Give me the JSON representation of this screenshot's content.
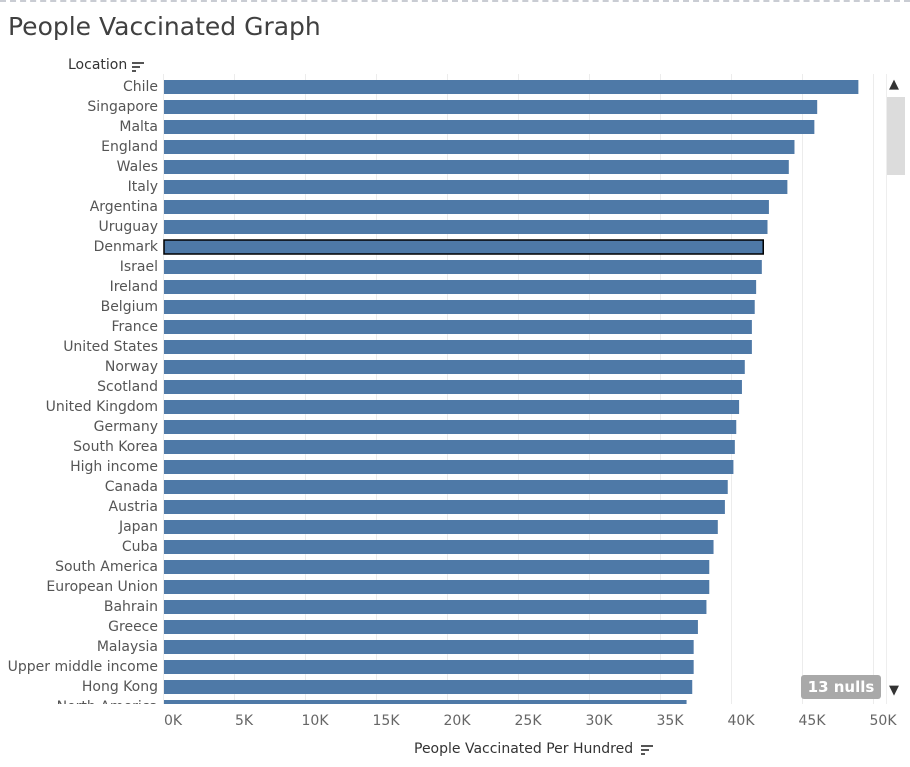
{
  "title": "People Vaccinated Graph",
  "row_header": "Location",
  "nulls_badge": "13 nulls",
  "colors": {
    "bar": "#4e79a7",
    "selected_outline": "#000000",
    "gridline": "#ececec"
  },
  "icons": [
    "sort-icon",
    "chevron-up-icon",
    "chevron-down-icon"
  ],
  "chart_data": {
    "type": "bar",
    "orientation": "horizontal",
    "title": "People Vaccinated Graph",
    "xlabel": "People Vaccinated Per Hundred",
    "ylabel": "Location",
    "xlim": [
      0,
      50000
    ],
    "x_ticks": [
      "0K",
      "5K",
      "10K",
      "15K",
      "20K",
      "25K",
      "30K",
      "35K",
      "40K",
      "45K",
      "50K"
    ],
    "grid": true,
    "selected_category": "Denmark",
    "categories": [
      "Chile",
      "Singapore",
      "Malta",
      "England",
      "Wales",
      "Italy",
      "Argentina",
      "Uruguay",
      "Denmark",
      "Israel",
      "Ireland",
      "Belgium",
      "France",
      "United States",
      "Norway",
      "Scotland",
      "United Kingdom",
      "Germany",
      "South Korea",
      "High income",
      "Canada",
      "Austria",
      "Japan",
      "Cuba",
      "South America",
      "European Union",
      "Bahrain",
      "Greece",
      "Malaysia",
      "Upper middle income",
      "Hong Kong",
      "North America"
    ],
    "values": [
      48900,
      46000,
      45800,
      44400,
      44000,
      43900,
      42600,
      42500,
      42200,
      42100,
      41700,
      41600,
      41400,
      41400,
      40900,
      40700,
      40500,
      40300,
      40200,
      40100,
      39700,
      39500,
      39000,
      38700,
      38400,
      38400,
      38200,
      37600,
      37300,
      37300,
      37200,
      36800
    ]
  }
}
